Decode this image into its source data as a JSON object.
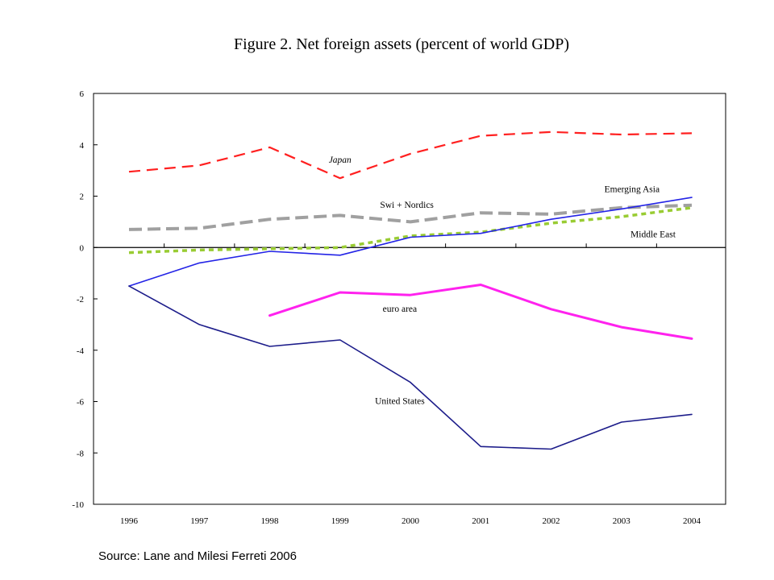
{
  "chart_data": {
    "type": "line",
    "title": "Figure 2. Net foreign assets (percent of world GDP)",
    "xlabel": "",
    "ylabel": "",
    "categories": [
      "1996",
      "1997",
      "1998",
      "1999",
      "2000",
      "2001",
      "2002",
      "2003",
      "2004"
    ],
    "ylim": [
      -10,
      6
    ],
    "yticks": [
      6,
      4,
      2,
      0,
      -2,
      -4,
      -6,
      -8,
      -10
    ],
    "grid": false,
    "series": [
      {
        "name": "Japan",
        "color": "#ff2020",
        "dash": "dashed",
        "values": [
          2.95,
          3.2,
          3.9,
          2.7,
          3.65,
          4.35,
          4.5,
          4.4,
          4.45
        ]
      },
      {
        "name": "Swi + Nordics",
        "color": "#a0a0a0",
        "dash": "dashed-thick",
        "values": [
          0.7,
          0.75,
          1.1,
          1.25,
          1.0,
          1.35,
          1.3,
          1.55,
          1.65
        ]
      },
      {
        "name": "Emerging Asia",
        "color": "#2323e6",
        "dash": "solid",
        "values": [
          -1.5,
          -0.6,
          -0.15,
          -0.3,
          0.4,
          0.55,
          1.1,
          1.5,
          1.95
        ]
      },
      {
        "name": "Middle East",
        "color": "#99cc33",
        "dash": "dotted-thick",
        "values": [
          -0.2,
          -0.1,
          -0.05,
          0.0,
          0.45,
          0.6,
          0.95,
          1.2,
          1.55
        ]
      },
      {
        "name": "euro area",
        "color": "#ff22ee",
        "dash": "solid-thick",
        "values": [
          null,
          null,
          -2.65,
          -1.75,
          -1.85,
          -1.45,
          -2.4,
          -3.1,
          -3.55
        ]
      },
      {
        "name": "United States",
        "color": "#1c1c8a",
        "dash": "solid",
        "values": [
          -1.5,
          -3.0,
          -3.85,
          -3.6,
          -5.25,
          -7.75,
          -7.85,
          -6.8,
          -6.5
        ]
      }
    ]
  },
  "source": "Source: Lane and Milesi Ferreti 2006"
}
